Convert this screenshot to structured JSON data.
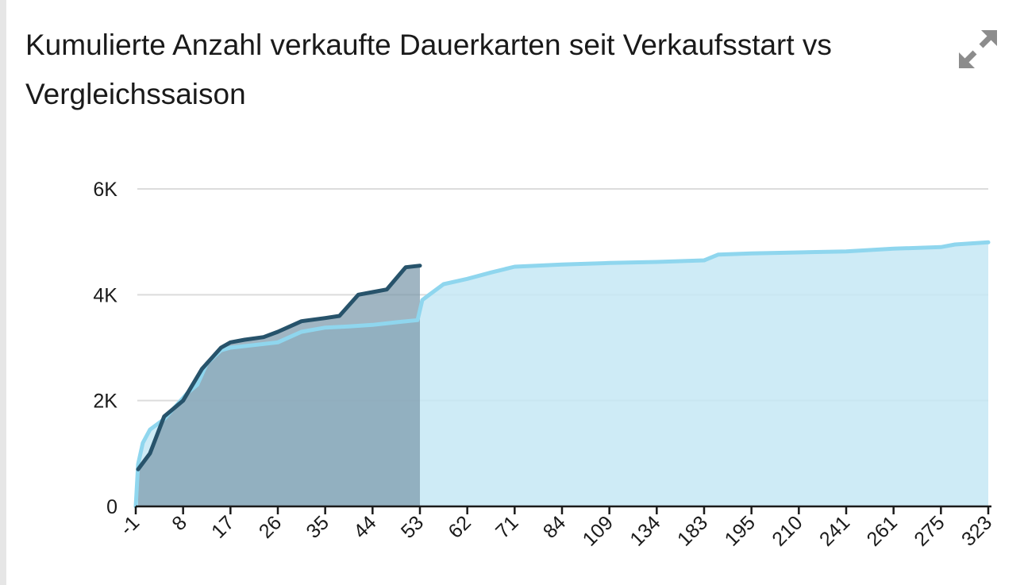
{
  "header": {
    "title": "Kumulierte Anzahl verkaufte Dauerkarten seit Verkaufsstart vs Vergleichssaison",
    "expand_icon": "expand-arrows-icon"
  },
  "colors": {
    "current_line": "#27536b",
    "current_fill": "#7c99ab",
    "comparison_line": "#8fd6ee",
    "comparison_fill": "#c6e7f4",
    "grid": "#dcdcdc",
    "axis": "#1a1a1a"
  },
  "chart_data": {
    "type": "area",
    "title": "Kumulierte Anzahl verkaufte Dauerkarten seit Verkaufsstart vs Vergleichssaison",
    "xlabel": "",
    "ylabel": "",
    "ylim": [
      0,
      6000
    ],
    "yticks": [
      0,
      2000,
      4000,
      6000
    ],
    "ytick_labels": [
      "0",
      "2K",
      "4K",
      "6K"
    ],
    "xtick_labels": [
      "-1",
      "8",
      "17",
      "26",
      "35",
      "44",
      "53",
      "62",
      "71",
      "84",
      "109",
      "134",
      "183",
      "195",
      "210",
      "241",
      "261",
      "275",
      "323"
    ],
    "grid": true,
    "legend": "none",
    "x_scale": "categorical (tick labels -1 to 323, 19 labelled ticks)",
    "series": [
      {
        "role": "current",
        "x": [
          0.05,
          0.3,
          0.6,
          1.0,
          1.4,
          1.8,
          2.0,
          2.3,
          2.7,
          3.0,
          3.5,
          4.0,
          4.3,
          4.7,
          5.0,
          5.3,
          5.7,
          6.0
        ],
        "values": [
          700,
          1000,
          1700,
          2000,
          2600,
          3000,
          3100,
          3150,
          3200,
          3300,
          3500,
          3560,
          3600,
          4000,
          4050,
          4100,
          4520,
          4550
        ]
      },
      {
        "role": "comparison",
        "x": [
          0.0,
          0.05,
          0.15,
          0.3,
          0.6,
          0.9,
          1.1,
          1.3,
          1.5,
          1.8,
          2.0,
          2.5,
          3.0,
          3.5,
          4.0,
          4.5,
          5.0,
          5.5,
          5.95,
          6.05,
          6.2,
          6.5,
          7.0,
          7.5,
          8.0,
          9.0,
          10.0,
          11.0,
          12.0,
          12.3,
          13.0,
          14.0,
          15.0,
          16.0,
          17.0,
          17.3,
          18.0
        ],
        "values": [
          0,
          800,
          1200,
          1450,
          1650,
          1950,
          2150,
          2300,
          2700,
          2950,
          3000,
          3050,
          3100,
          3300,
          3380,
          3400,
          3430,
          3480,
          3520,
          3900,
          4000,
          4200,
          4300,
          4420,
          4530,
          4570,
          4600,
          4620,
          4650,
          4760,
          4780,
          4800,
          4820,
          4870,
          4900,
          4950,
          4990
        ]
      }
    ]
  }
}
